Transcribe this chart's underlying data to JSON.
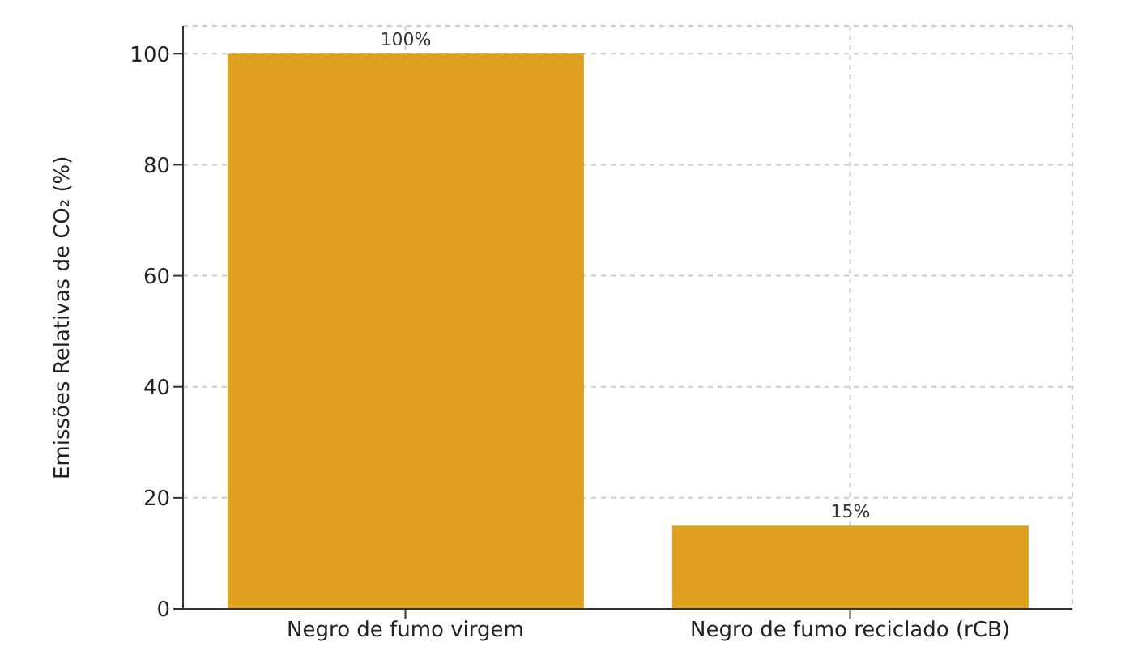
{
  "chart_data": {
    "type": "bar",
    "ylabel": "Emissões Relativas de CO₂ (%)",
    "categories": [
      "Negro de fumo virgem",
      "Negro de fumo reciclado (rCB)"
    ],
    "values": [
      100,
      15
    ],
    "color": "#e0a020",
    "value_labels": [
      "100%",
      "15%"
    ],
    "ylim": [
      0,
      105
    ],
    "yticks": [
      0,
      20,
      40,
      60,
      80,
      100
    ],
    "grid": true
  }
}
